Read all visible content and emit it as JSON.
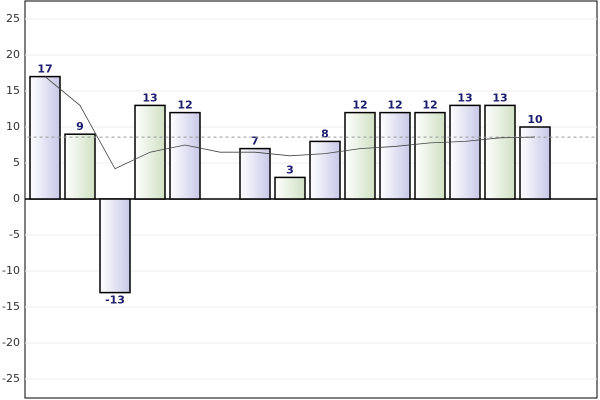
{
  "chart_data": {
    "type": "bar",
    "values": [
      17,
      9,
      -13,
      13,
      12,
      null,
      7,
      3,
      8,
      12,
      12,
      12,
      13,
      13,
      10
    ],
    "colors": [
      "#dcdcf0",
      "#dfe9d6"
    ],
    "trend": [
      17,
      13,
      4.2,
      6.5,
      7.5,
      6.5,
      6.5,
      6,
      6.3,
      7,
      7.3,
      7.8,
      8,
      8.5,
      8.6
    ],
    "average": 8.6,
    "ylim": [
      -27.5,
      27.5
    ],
    "yticks": [
      -25,
      -20,
      -15,
      -10,
      -5,
      0,
      5,
      10,
      15,
      20,
      25
    ],
    "grid": true
  }
}
